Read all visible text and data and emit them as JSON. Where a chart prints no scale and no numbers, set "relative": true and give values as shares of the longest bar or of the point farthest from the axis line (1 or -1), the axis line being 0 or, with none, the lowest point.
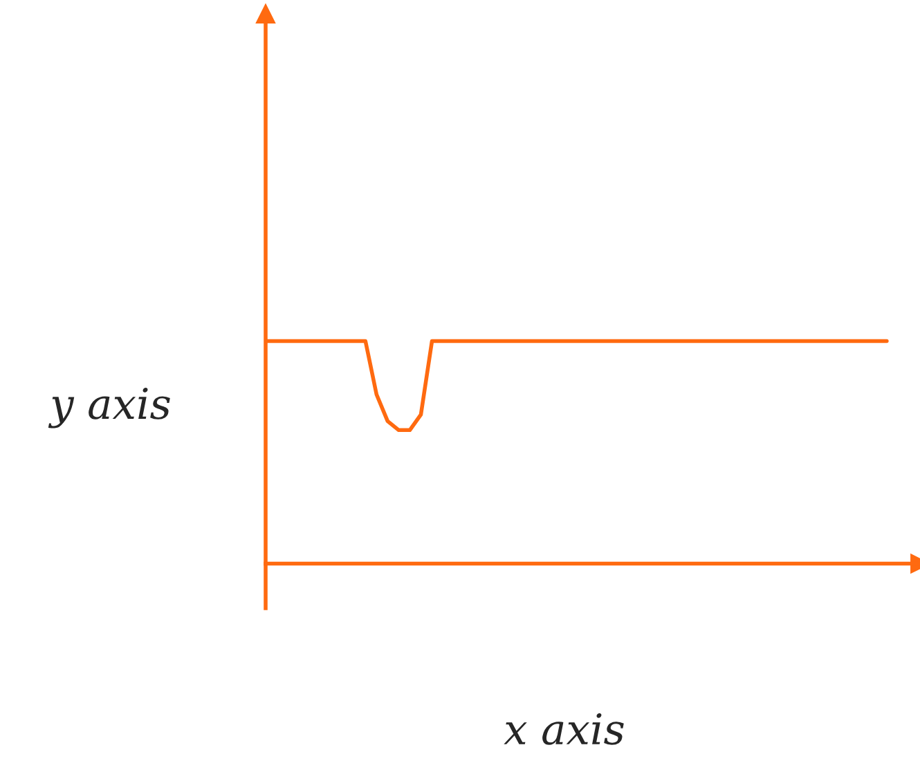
{
  "chart_data": {
    "type": "line",
    "relative": true,
    "xlabel": "x axis",
    "ylabel": "y axis",
    "grid": false,
    "legend": false,
    "marker": "none",
    "line_style": "solid",
    "categories": [
      null,
      null,
      null,
      null,
      null,
      null,
      null,
      null,
      null,
      null,
      null,
      null,
      null,
      null,
      null,
      null,
      null,
      null,
      null,
      null,
      null,
      null,
      null,
      null,
      null,
      null,
      null,
      null,
      null,
      null,
      null,
      null,
      null,
      null,
      null,
      null,
      null,
      null,
      null,
      null,
      null,
      null,
      null,
      null,
      null,
      null,
      null,
      null,
      null,
      null,
      null,
      null,
      null,
      null,
      null,
      null,
      null
    ],
    "series": [
      {
        "color": "#ff6a10",
        "values": [
          1,
          1,
          1,
          1,
          1,
          1,
          1,
          1,
          1,
          1,
          0.76,
          0.64,
          0.6,
          0.6,
          0.67,
          1,
          1,
          1,
          1,
          1,
          1,
          1,
          1,
          1,
          1,
          1,
          1,
          1,
          1,
          1,
          1,
          1,
          1,
          1,
          1,
          1,
          1,
          1,
          1,
          1,
          1,
          1,
          1,
          1,
          1,
          1,
          1,
          1,
          1,
          1,
          1,
          1,
          1,
          1,
          1,
          1,
          1
        ]
      }
    ]
  }
}
